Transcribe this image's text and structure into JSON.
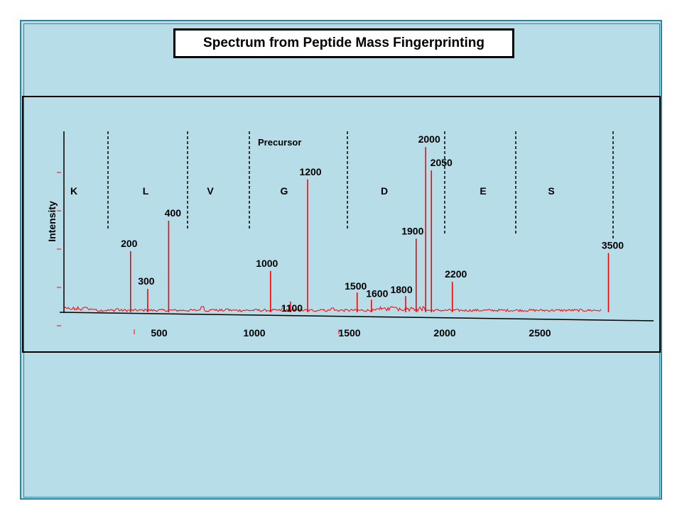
{
  "slide": {
    "title": "Spectrum from Peptide Mass Fingerprinting"
  },
  "colors": {
    "background": "#b7dde8",
    "border": "#31849b",
    "trace": "#ff0000",
    "axis": "#000000"
  },
  "chart_data": {
    "type": "line",
    "title": "Spectrum from Peptide Mass Fingerprinting",
    "xlabel": "",
    "ylabel": "Intensity",
    "x_ticks": [
      500,
      1000,
      1500,
      2000,
      2500
    ],
    "grid": false,
    "legend": "none",
    "region_labels": [
      "K",
      "L",
      "V",
      "G",
      "D",
      "E",
      "S"
    ],
    "annotation": "Precursor",
    "peaks": [
      {
        "label": "200",
        "x": 350,
        "y": 34
      },
      {
        "label": "300",
        "x": 440,
        "y": 13
      },
      {
        "label": "400",
        "x": 550,
        "y": 51
      },
      {
        "label": "1000",
        "x": 1085,
        "y": 23
      },
      {
        "label": "1100",
        "x": 1190,
        "y": 6
      },
      {
        "label": "1200",
        "x": 1280,
        "y": 74
      },
      {
        "label": "1500",
        "x": 1540,
        "y": 11
      },
      {
        "label": "1600",
        "x": 1615,
        "y": 7
      },
      {
        "label": "1800",
        "x": 1795,
        "y": 9
      },
      {
        "label": "1900",
        "x": 1850,
        "y": 41
      },
      {
        "label": "2000",
        "x": 1900,
        "y": 92
      },
      {
        "label": "2050",
        "x": 1930,
        "y": 79
      },
      {
        "label": "2200",
        "x": 2040,
        "y": 17
      },
      {
        "label": "3500",
        "x": 2860,
        "y": 33
      }
    ]
  }
}
